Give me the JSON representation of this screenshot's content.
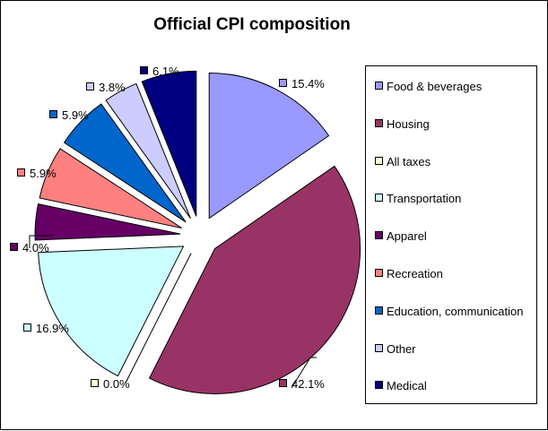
{
  "chart_data": {
    "type": "pie",
    "title": "Official CPI composition",
    "categories": [
      "Food & beverages",
      "Housing",
      "All taxes",
      "Transportation",
      "Apparel",
      "Recreation",
      "Education, communication",
      "Other",
      "Medical"
    ],
    "values": [
      15.4,
      42.1,
      0.0,
      16.9,
      4.0,
      5.9,
      5.9,
      3.8,
      6.1
    ],
    "labels": [
      "15.4%",
      "42.1%",
      "0.0%",
      "16.9%",
      "4.0%",
      "5.9%",
      "5.9%",
      "3.8%",
      "6.1%"
    ],
    "colors": [
      "#9999ff",
      "#993366",
      "#ffffcc",
      "#ccffff",
      "#660066",
      "#ff8080",
      "#0066cc",
      "#ccccff",
      "#000080"
    ],
    "exploded": true,
    "legend_position": "right"
  }
}
